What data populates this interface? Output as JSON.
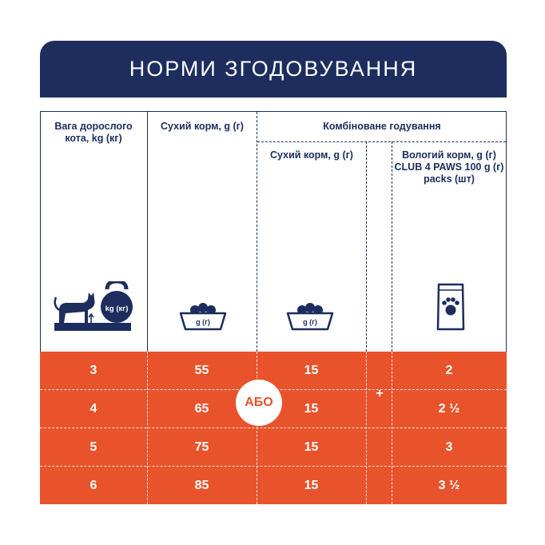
{
  "header": {
    "title": "НОРМИ ЗГОДОВУВАННЯ"
  },
  "columns": {
    "weight": "Вага дорослого кота, kg (кг)",
    "dry": "Сухий корм, g (г)",
    "combined": "Комбіноване годування",
    "combined_dry": "Сухий корм, g (г)",
    "wet": "Вологий корм, g (г) CLUB 4 PAWS 100 g (г) packs (шт)"
  },
  "icons": {
    "kettlebell_label": "kg (кг)",
    "bowl_label": "g (г)",
    "bowl2_label": "g (г)"
  },
  "or_label": "АБО",
  "plus_label": "+",
  "rows": [
    {
      "weight": "3",
      "dry": "55",
      "combined_dry": "15",
      "wet": "2"
    },
    {
      "weight": "4",
      "dry": "65",
      "combined_dry": "15",
      "wet": "2 ½"
    },
    {
      "weight": "5",
      "dry": "75",
      "combined_dry": "15",
      "wet": "3"
    },
    {
      "weight": "6",
      "dry": "85",
      "combined_dry": "15",
      "wet": "3 ½"
    }
  ],
  "colors": {
    "navy": "#1c2d5e",
    "orange": "#e8532b"
  }
}
